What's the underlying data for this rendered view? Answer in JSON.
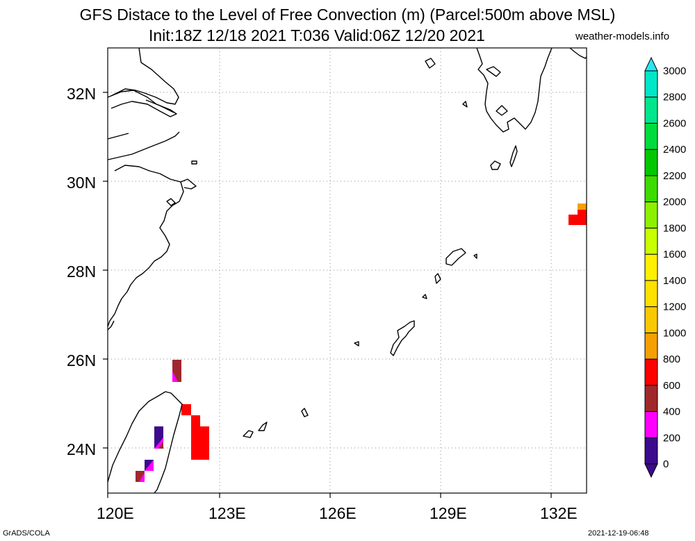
{
  "header": {
    "title_line1": "GFS Distace to the Level of Free Convection (m) (Parcel:500m above MSL)",
    "title_line2": "Init:18Z 12/18 2021 T:036 Valid:06Z 12/20 2021",
    "site": "weather-models.info"
  },
  "footer": {
    "left": "GrADS/COLA",
    "right": "2021-12-19-06:48"
  },
  "map": {
    "lon_ticks": [
      "120E",
      "123E",
      "126E",
      "129E",
      "132E"
    ],
    "lat_ticks": [
      "24N",
      "26N",
      "28N",
      "30N",
      "32N"
    ],
    "lon_range": [
      120,
      133
    ],
    "lat_range": [
      23,
      33
    ]
  },
  "colorbar": {
    "labels": [
      "0",
      "200",
      "400",
      "600",
      "800",
      "1000",
      "1200",
      "1400",
      "1600",
      "1800",
      "2000",
      "2200",
      "2400",
      "2600",
      "2800",
      "3000"
    ],
    "colors": [
      "#3c0a8c",
      "#ff00ff",
      "#a0282d",
      "#ff0000",
      "#f5a000",
      "#fac800",
      "#ffe100",
      "#fff000",
      "#c8ff00",
      "#8cf000",
      "#3cdc00",
      "#00c800",
      "#00dc3c",
      "#00e68c",
      "#00e6c8",
      "#00e6f0"
    ],
    "under_color": "#3c0a8c",
    "over_color": "#28e6f0"
  }
}
